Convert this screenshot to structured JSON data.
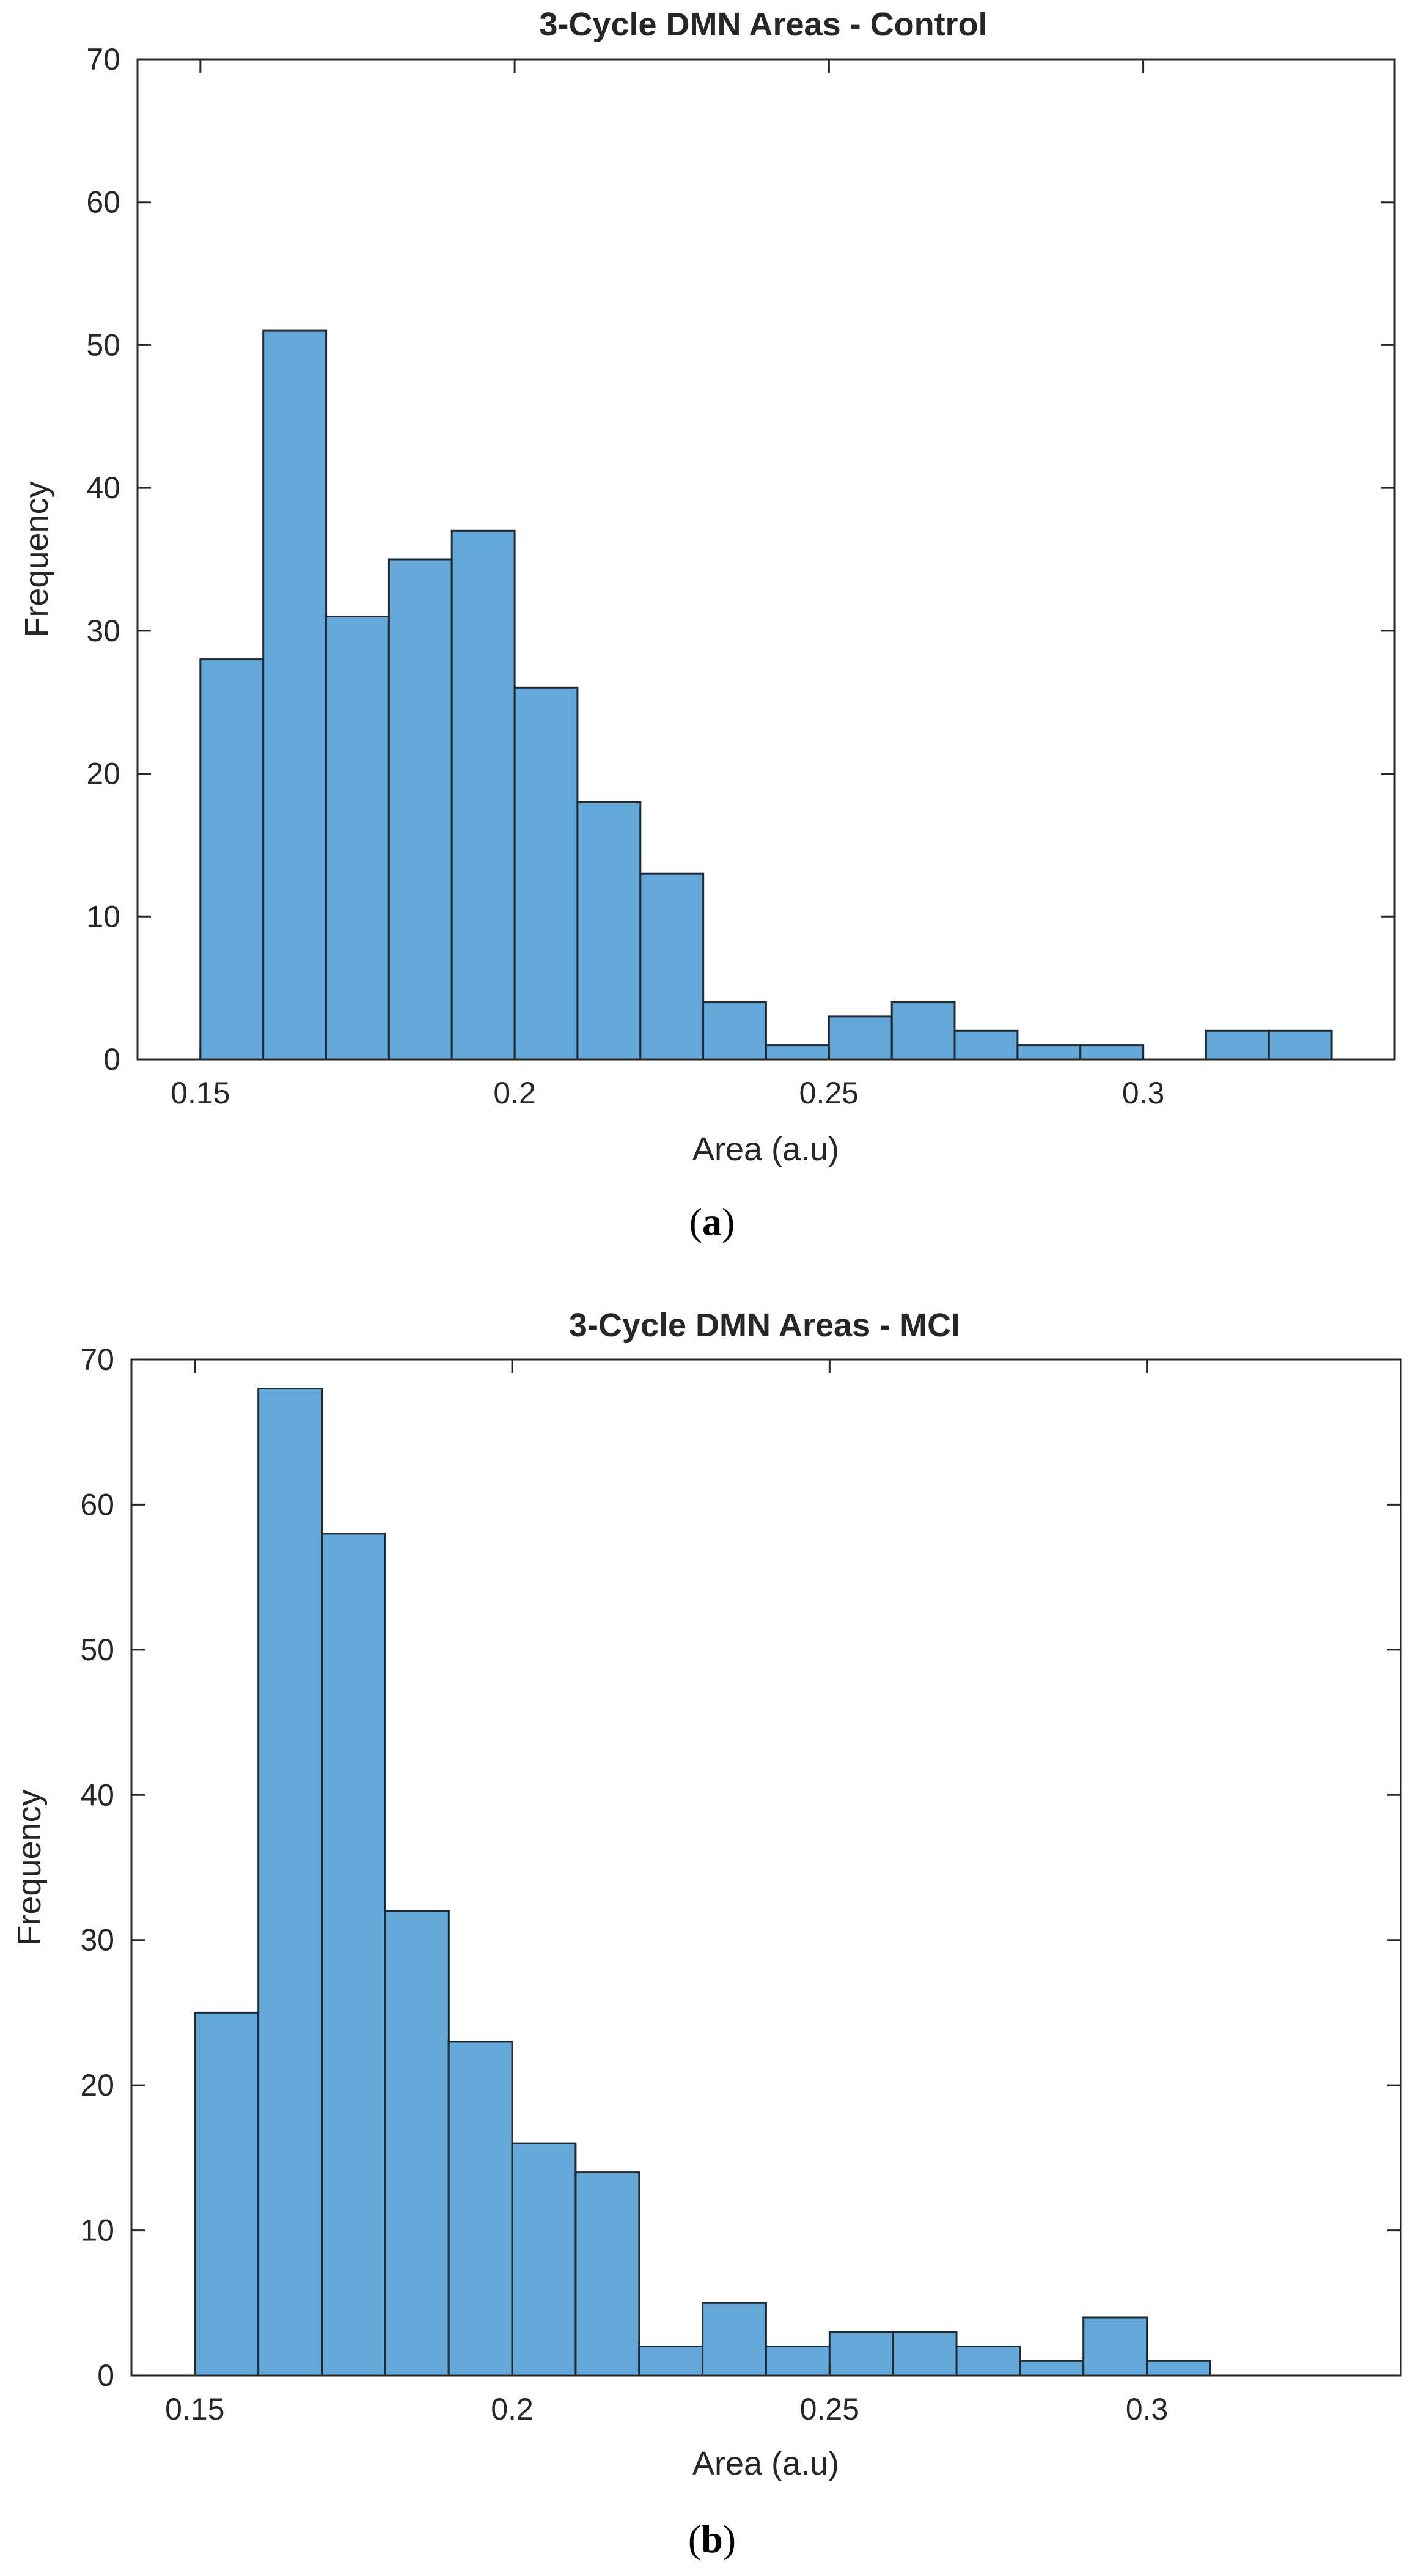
{
  "chart_data": [
    {
      "type": "bar",
      "title": "3-Cycle DMN Areas - Control",
      "xlabel": "Area (a.u)",
      "ylabel": "Frequency",
      "bin_edges": [
        0.15,
        0.16,
        0.17,
        0.18,
        0.19,
        0.2,
        0.21,
        0.22,
        0.23,
        0.24,
        0.25,
        0.26,
        0.27,
        0.28,
        0.29,
        0.3,
        0.31,
        0.32,
        0.33
      ],
      "values": [
        28,
        51,
        31,
        35,
        37,
        26,
        18,
        13,
        4,
        1,
        3,
        4,
        2,
        1,
        1,
        0,
        2,
        2
      ],
      "xlim": [
        0.14,
        0.34
      ],
      "ylim": [
        0,
        70
      ],
      "xticks": [
        0.15,
        0.2,
        0.25,
        0.3
      ],
      "xtick_labels": [
        "0.15",
        "0.2",
        "0.25",
        "0.3"
      ],
      "yticks": [
        0,
        10,
        20,
        30,
        40,
        50,
        60,
        70
      ],
      "ytick_labels": [
        "0",
        "10",
        "20",
        "30",
        "40",
        "50",
        "60",
        "70"
      ],
      "grid": false,
      "caption_label": "a"
    },
    {
      "type": "bar",
      "title": "3-Cycle DMN Areas - MCI",
      "xlabel": "Area (a.u)",
      "ylabel": "Frequency",
      "bin_edges": [
        0.15,
        0.16,
        0.17,
        0.18,
        0.19,
        0.2,
        0.21,
        0.22,
        0.23,
        0.24,
        0.25,
        0.26,
        0.27,
        0.28,
        0.29,
        0.3,
        0.31
      ],
      "values": [
        25,
        68,
        58,
        32,
        23,
        16,
        14,
        2,
        5,
        2,
        3,
        3,
        2,
        1,
        4,
        1
      ],
      "xlim": [
        0.14,
        0.34
      ],
      "ylim": [
        0,
        70
      ],
      "xticks": [
        0.15,
        0.2,
        0.25,
        0.3
      ],
      "xtick_labels": [
        "0.15",
        "0.2",
        "0.25",
        "0.3"
      ],
      "yticks": [
        0,
        10,
        20,
        30,
        40,
        50,
        60,
        70
      ],
      "ytick_labels": [
        "0",
        "10",
        "20",
        "30",
        "40",
        "50",
        "60",
        "70"
      ],
      "grid": false,
      "caption_label": "b"
    }
  ],
  "colors": {
    "bar_fill": "#63a8d8",
    "bar_edge": "#1f2a33",
    "axis": "#262626",
    "text": "#262626",
    "background": "#ffffff"
  }
}
